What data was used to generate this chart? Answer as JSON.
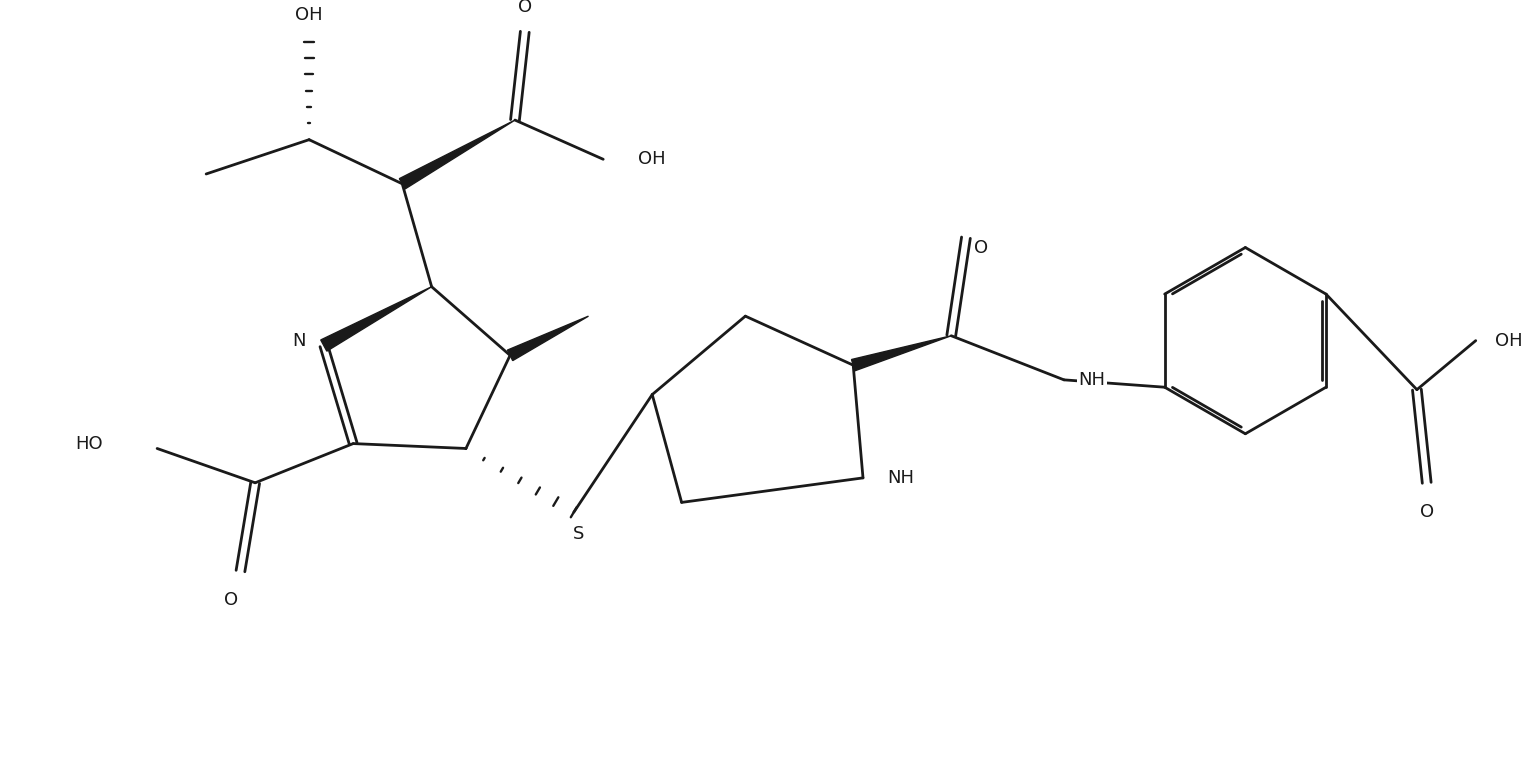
{
  "bg_color": "#ffffff",
  "line_color": "#1a1a1a",
  "line_width": 2.0,
  "font_size": 13,
  "figsize": [
    15.33,
    7.72
  ],
  "dpi": 100,
  "xlim": [
    0,
    153.3
  ],
  "ylim": [
    0,
    77.2
  ]
}
